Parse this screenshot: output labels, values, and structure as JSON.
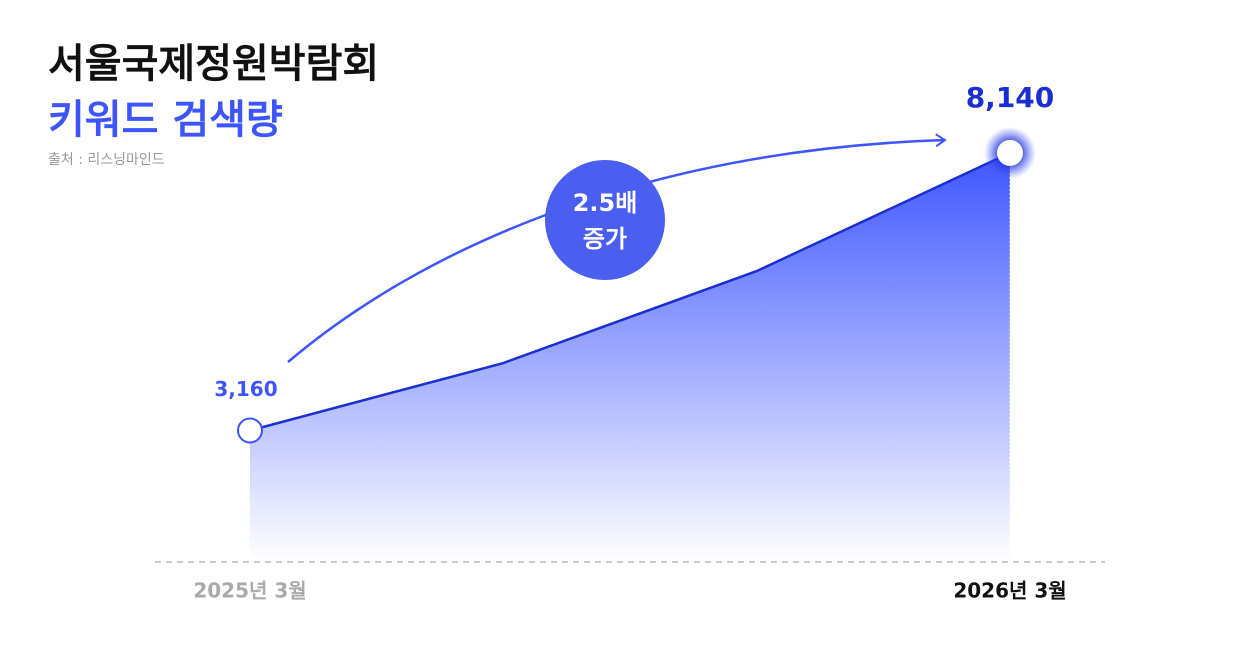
{
  "chart_data": {
    "type": "area",
    "title": "서울국제정원박람회",
    "subtitle": "키워드 검색량",
    "source": "출처 : 리스닝마인드",
    "annotation": [
      "2.5배",
      "증가"
    ],
    "categories": [
      "2025년 3월",
      null,
      null,
      "2026년 3월"
    ],
    "values": [
      3160,
      4370,
      6020,
      8140
    ],
    "value_labels": [
      "3,160",
      null,
      null,
      "8,140"
    ],
    "color": "#1a2fd0",
    "area_color": "#3d55ff",
    "ylim": [
      800,
      9000
    ]
  }
}
